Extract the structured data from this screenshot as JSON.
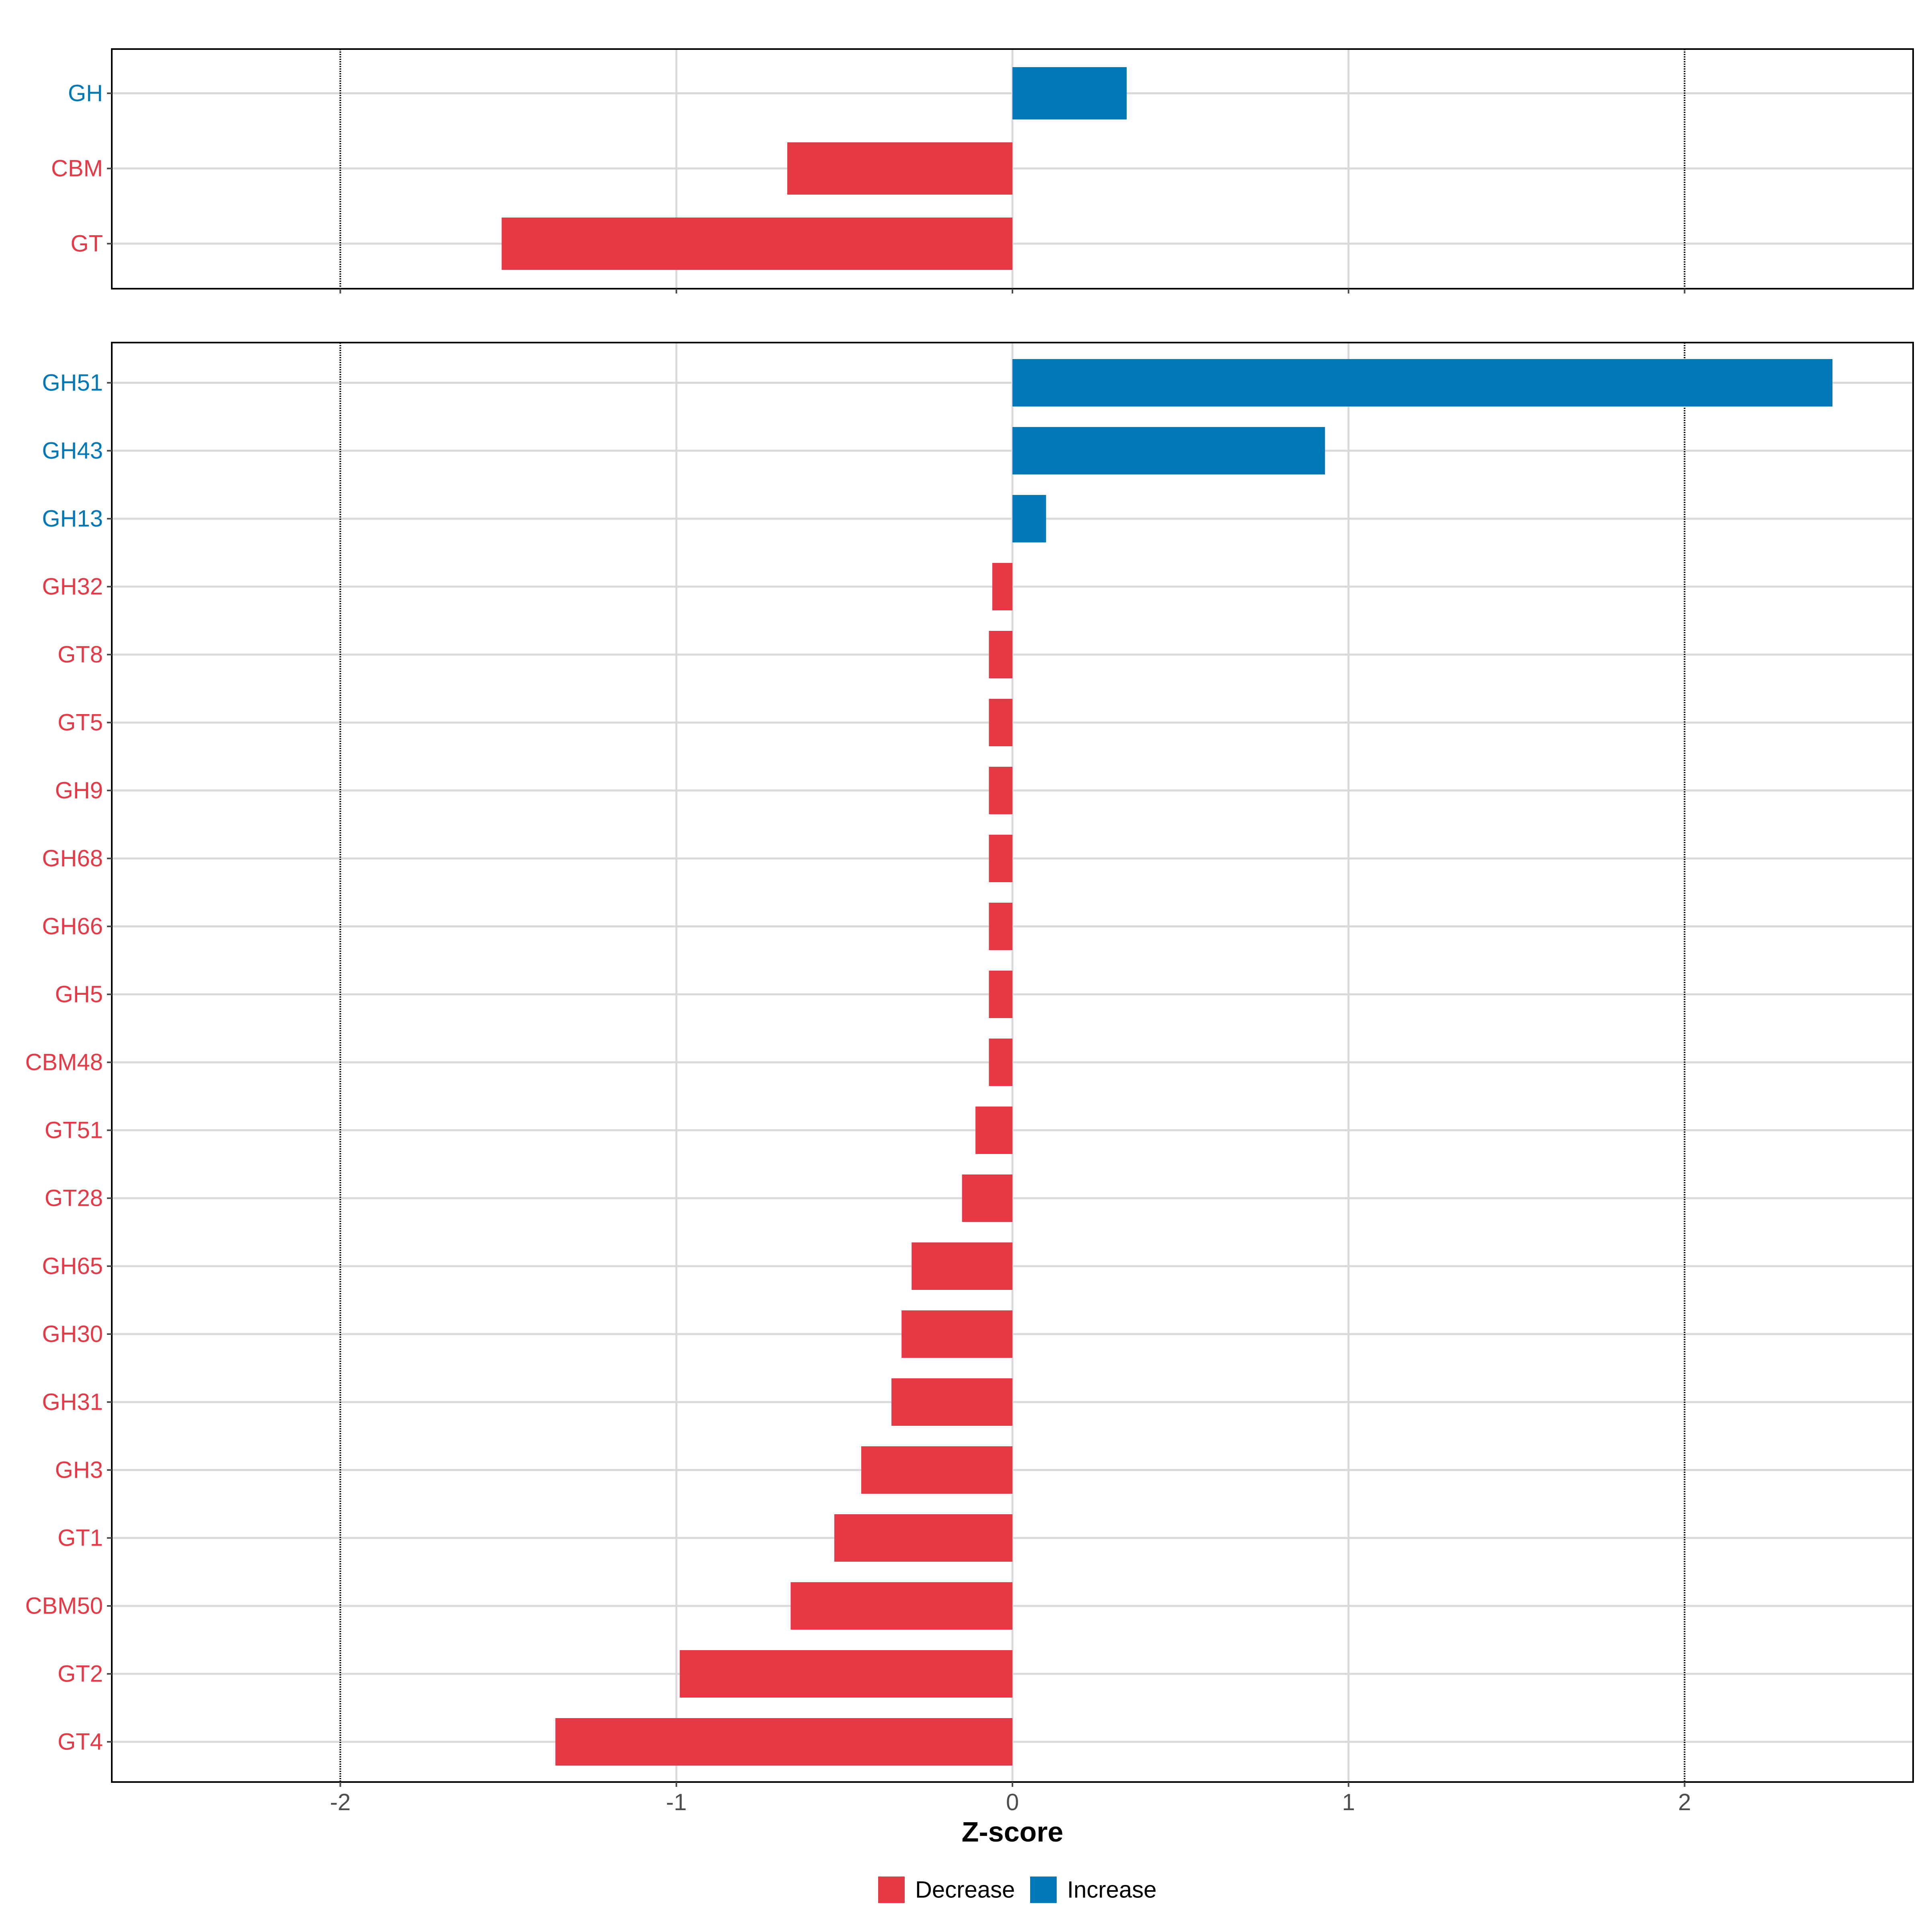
{
  "colors": {
    "decrease": "#E63946",
    "increase": "#0077B6",
    "grid": "#D9D9D9",
    "panel_border": "#000000",
    "ref_line": "#000000",
    "axis_text": "#4D4D4D"
  },
  "chart_data": [
    {
      "type": "bar",
      "orientation": "horizontal",
      "categories": [
        "GH",
        "CBM",
        "GT"
      ],
      "values": [
        0.34,
        -0.67,
        -1.52
      ],
      "direction": [
        "Increase",
        "Decrease",
        "Decrease"
      ],
      "xlim": [
        -2.68,
        2.68
      ],
      "xticks": [
        -2,
        -1,
        0,
        1,
        2
      ],
      "reference_lines": [
        -2,
        2
      ],
      "grid": true
    },
    {
      "type": "bar",
      "orientation": "horizontal",
      "categories": [
        "GH51",
        "GH43",
        "GH13",
        "GH32",
        "GT8",
        "GT5",
        "GH9",
        "GH68",
        "GH66",
        "GH5",
        "CBM48",
        "GT51",
        "GT28",
        "GH65",
        "GH30",
        "GH31",
        "GH3",
        "GT1",
        "CBM50",
        "GT2",
        "GT4"
      ],
      "values": [
        2.44,
        0.93,
        0.1,
        -0.06,
        -0.07,
        -0.07,
        -0.07,
        -0.07,
        -0.07,
        -0.07,
        -0.07,
        -0.11,
        -0.15,
        -0.3,
        -0.33,
        -0.36,
        -0.45,
        -0.53,
        -0.66,
        -0.99,
        -1.36
      ],
      "direction": [
        "Increase",
        "Increase",
        "Increase",
        "Decrease",
        "Decrease",
        "Decrease",
        "Decrease",
        "Decrease",
        "Decrease",
        "Decrease",
        "Decrease",
        "Decrease",
        "Decrease",
        "Decrease",
        "Decrease",
        "Decrease",
        "Decrease",
        "Decrease",
        "Decrease",
        "Decrease",
        "Decrease"
      ],
      "xlim": [
        -2.68,
        2.68
      ],
      "xticks": [
        -2,
        -1,
        0,
        1,
        2
      ],
      "tick_labels": [
        "-2",
        "-1",
        "0",
        "1",
        "2"
      ],
      "reference_lines": [
        -2,
        2
      ],
      "grid": true,
      "xlabel": "Z-score"
    }
  ],
  "legend": {
    "placement": "bottom",
    "items": [
      {
        "label": "Decrease",
        "color_key": "decrease"
      },
      {
        "label": "Increase",
        "color_key": "increase"
      }
    ]
  }
}
